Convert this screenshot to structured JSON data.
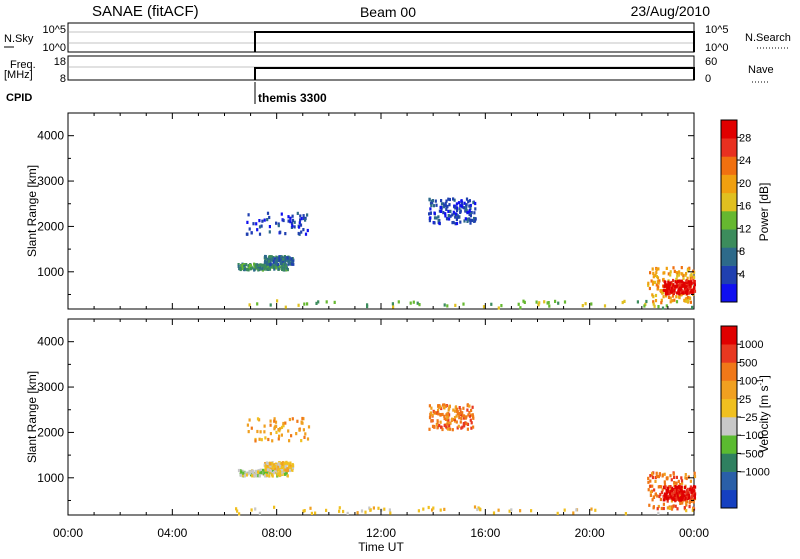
{
  "header": {
    "station": "SANAE (fitACF)",
    "beam": "Beam 00",
    "date": "23/Aug/2010"
  },
  "summary": {
    "nsky_label": "N.Sky",
    "nsky_ticks": [
      "10^5",
      "10^0"
    ],
    "nsearch_label": "N.Search",
    "nsearch_ticks": [
      "10^5",
      "10^0"
    ],
    "freq_label": "Freq.",
    "freq_unit": "[MHz]",
    "freq_ticks": [
      "18",
      "8"
    ],
    "nave_label": "Nave",
    "nave_ticks": [
      "60",
      "0"
    ],
    "cpid_label": "CPID",
    "cpid_value": "themis 3300",
    "cpid_start": "06:30"
  },
  "chart_data": [
    {
      "type": "heatmap",
      "name": "power-panel",
      "xlabel": "",
      "ylabel": "Slant Range [km]",
      "xlim": [
        0,
        24
      ],
      "ylim": [
        180,
        4500
      ],
      "yticks": [
        "1000",
        "2000",
        "3000",
        "4000"
      ],
      "colorbar_label": "Power [dB]",
      "colorbar_ticks": [
        "4",
        "8",
        "12",
        "16",
        "20",
        "24",
        "28"
      ],
      "colorbar_colors": [
        "#1010f0",
        "#2040b0",
        "#2d6a8a",
        "#3c8c5c",
        "#66b830",
        "#e0c020",
        "#f0a010",
        "#f07010",
        "#e83020",
        "#e00000"
      ],
      "features": [
        {
          "t0": 6.5,
          "t1": 8.4,
          "r0": 1030,
          "r1": 1160,
          "level": 3
        },
        {
          "t0": 7.5,
          "t1": 8.6,
          "r0": 1150,
          "r1": 1330,
          "level": 2
        },
        {
          "t0": 6.8,
          "t1": 9.2,
          "r0": 1800,
          "r1": 2300,
          "level": 1,
          "sparse": true
        },
        {
          "t0": 13.8,
          "t1": 15.6,
          "r0": 2050,
          "r1": 2600,
          "level": 1
        },
        {
          "t0": 22.2,
          "t1": 24.0,
          "r0": 300,
          "r1": 1100,
          "level": 6
        },
        {
          "t0": 22.8,
          "t1": 24.0,
          "r0": 500,
          "r1": 800,
          "level": 9
        },
        {
          "t0": 6.3,
          "t1": 24.0,
          "r0": 190,
          "r1": 350,
          "level": 4,
          "sparse": true
        }
      ]
    },
    {
      "type": "heatmap",
      "name": "velocity-panel",
      "xlabel": "Time UT",
      "ylabel": "Slant Range [km]",
      "xlim": [
        0,
        24
      ],
      "ylim": [
        180,
        4500
      ],
      "xticks": [
        "00:00",
        "04:00",
        "08:00",
        "12:00",
        "16:00",
        "20:00",
        "00:00"
      ],
      "yticks": [
        "1000",
        "2000",
        "3000",
        "4000"
      ],
      "colorbar_label": "Velocity [m s",
      "colorbar_sup": "-1",
      "colorbar_ticks": [
        "1000",
        "500",
        "100",
        "25",
        "−25",
        "−100",
        "−500",
        "−1000"
      ],
      "colorbar_colors": [
        "#1540c0",
        "#2a5fa8",
        "#2f8060",
        "#5bbb30",
        "#c8c8c8",
        "#f0c020",
        "#f0a020",
        "#f07818",
        "#e83820",
        "#e00000"
      ],
      "features": [
        {
          "t0": 6.5,
          "t1": 8.4,
          "r0": 1030,
          "r1": 1160,
          "level": 4
        },
        {
          "t0": 7.5,
          "t1": 8.6,
          "r0": 1150,
          "r1": 1330,
          "level": 5
        },
        {
          "t0": 6.8,
          "t1": 9.2,
          "r0": 1800,
          "r1": 2300,
          "level": 6,
          "sparse": true
        },
        {
          "t0": 13.8,
          "t1": 15.6,
          "r0": 2050,
          "r1": 2600,
          "level": 7
        },
        {
          "t0": 22.2,
          "t1": 24.0,
          "r0": 300,
          "r1": 1100,
          "level": 7
        },
        {
          "t0": 22.8,
          "t1": 24.0,
          "r0": 500,
          "r1": 800,
          "level": 9
        },
        {
          "t0": 6.3,
          "t1": 24.0,
          "r0": 190,
          "r1": 350,
          "level": 5,
          "sparse": true
        }
      ]
    }
  ]
}
